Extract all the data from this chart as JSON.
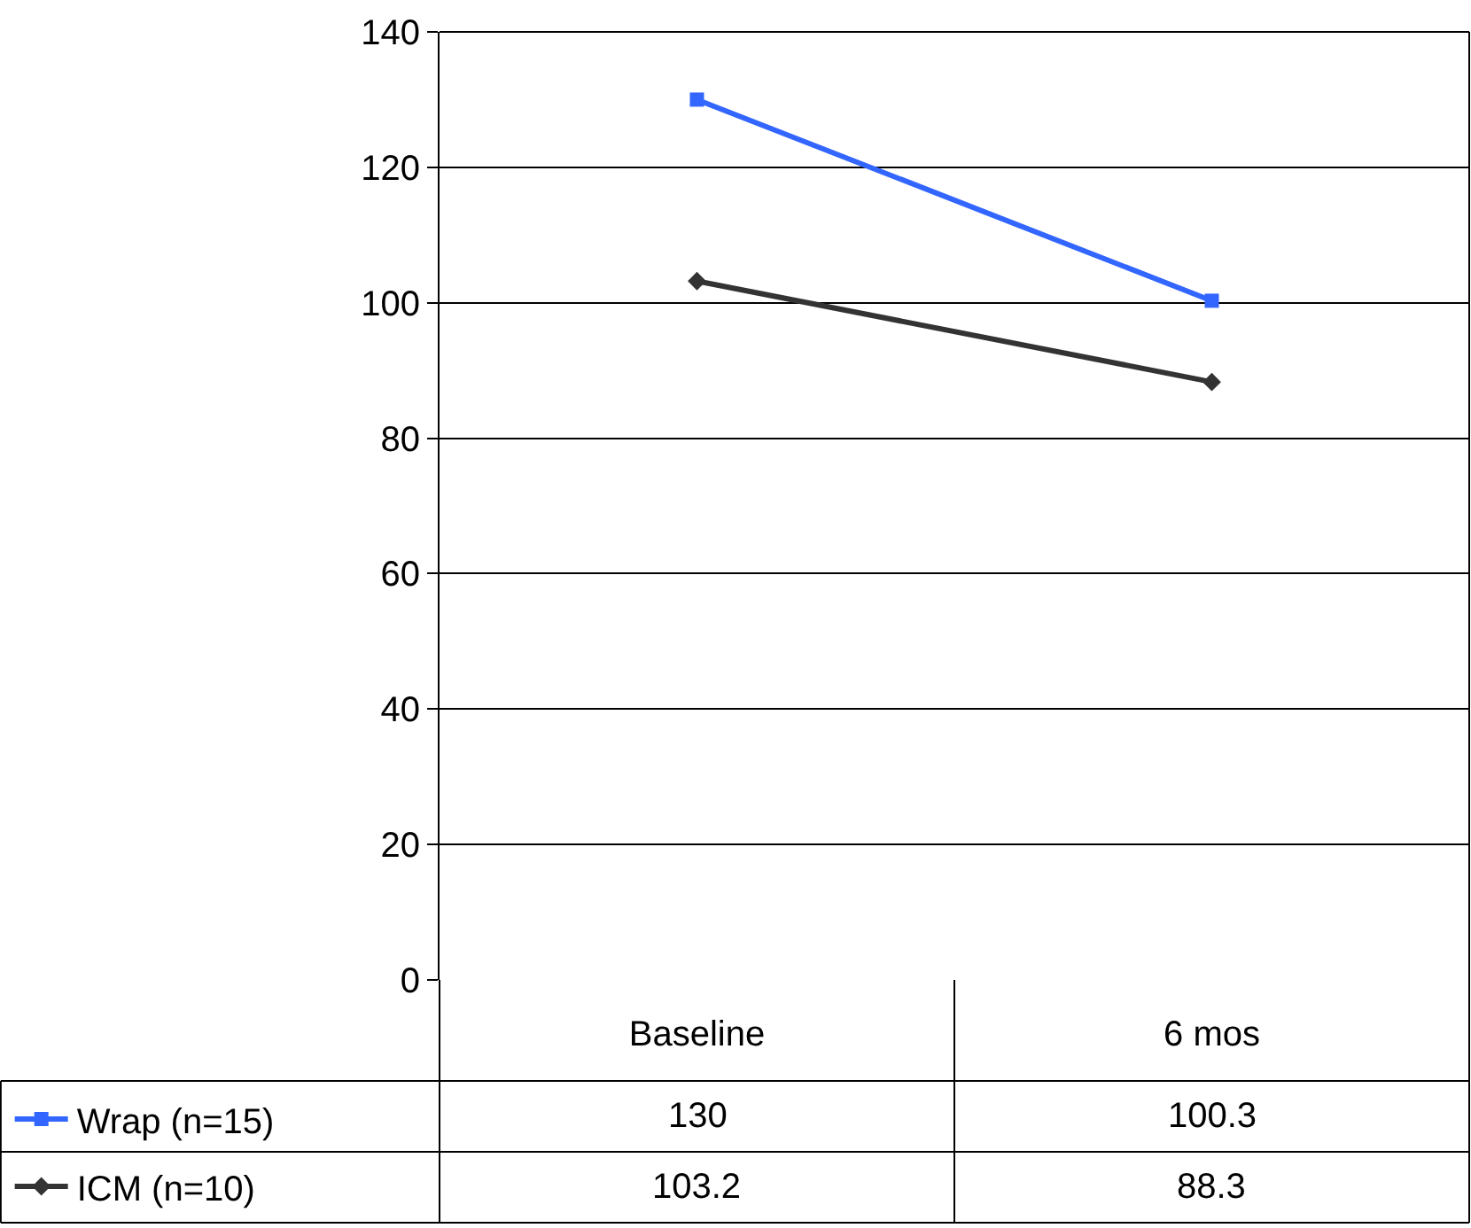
{
  "chart_data": {
    "type": "line",
    "categories": [
      "Baseline",
      "6 mos"
    ],
    "series": [
      {
        "name": "Wrap (n=15)",
        "color": "#3366ff",
        "marker": "square",
        "values": [
          130,
          100.3
        ]
      },
      {
        "name": "ICM (n=10)",
        "color": "#333333",
        "marker": "diamond",
        "values": [
          103.2,
          88.3
        ]
      }
    ],
    "ylim": [
      0,
      140
    ],
    "yticks": [
      0,
      20,
      40,
      60,
      80,
      100,
      120,
      140
    ],
    "grid": "y",
    "legend": "bottom left",
    "data_labels": true
  }
}
